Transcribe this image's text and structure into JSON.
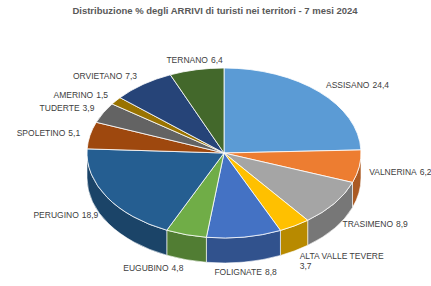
{
  "chart_data": {
    "type": "pie",
    "title": "Distribuzione % degli ARRIVI di turisti nei territori - 7 mesi 2024",
    "categories": [
      "ASSISANO",
      "VALNERINA",
      "TRASIMENO",
      "ALTA VALLE TEVERE",
      "FOLIGNATE",
      "EUGUBINO",
      "PERUGINO",
      "SPOLETINO",
      "TUDERTE",
      "AMERINO",
      "ORVIETANO",
      "TERNANO"
    ],
    "values": [
      24.4,
      6.2,
      8.9,
      3.7,
      8.8,
      4.8,
      18.9,
      5.1,
      3.9,
      1.5,
      7.3,
      6.4
    ],
    "value_labels": [
      "24,4",
      "6,2",
      "8,9",
      "3,7",
      "8,8",
      "4,8",
      "18,9",
      "5,1",
      "3,9",
      "1,5",
      "7,3",
      "6,4"
    ],
    "colors": [
      "#5b9bd5",
      "#ed7d31",
      "#a5a5a5",
      "#ffc000",
      "#4472c4",
      "#70ad47",
      "#255e91",
      "#9e480e",
      "#636363",
      "#997300",
      "#264478",
      "#43682b"
    ],
    "data_labels": true
  }
}
